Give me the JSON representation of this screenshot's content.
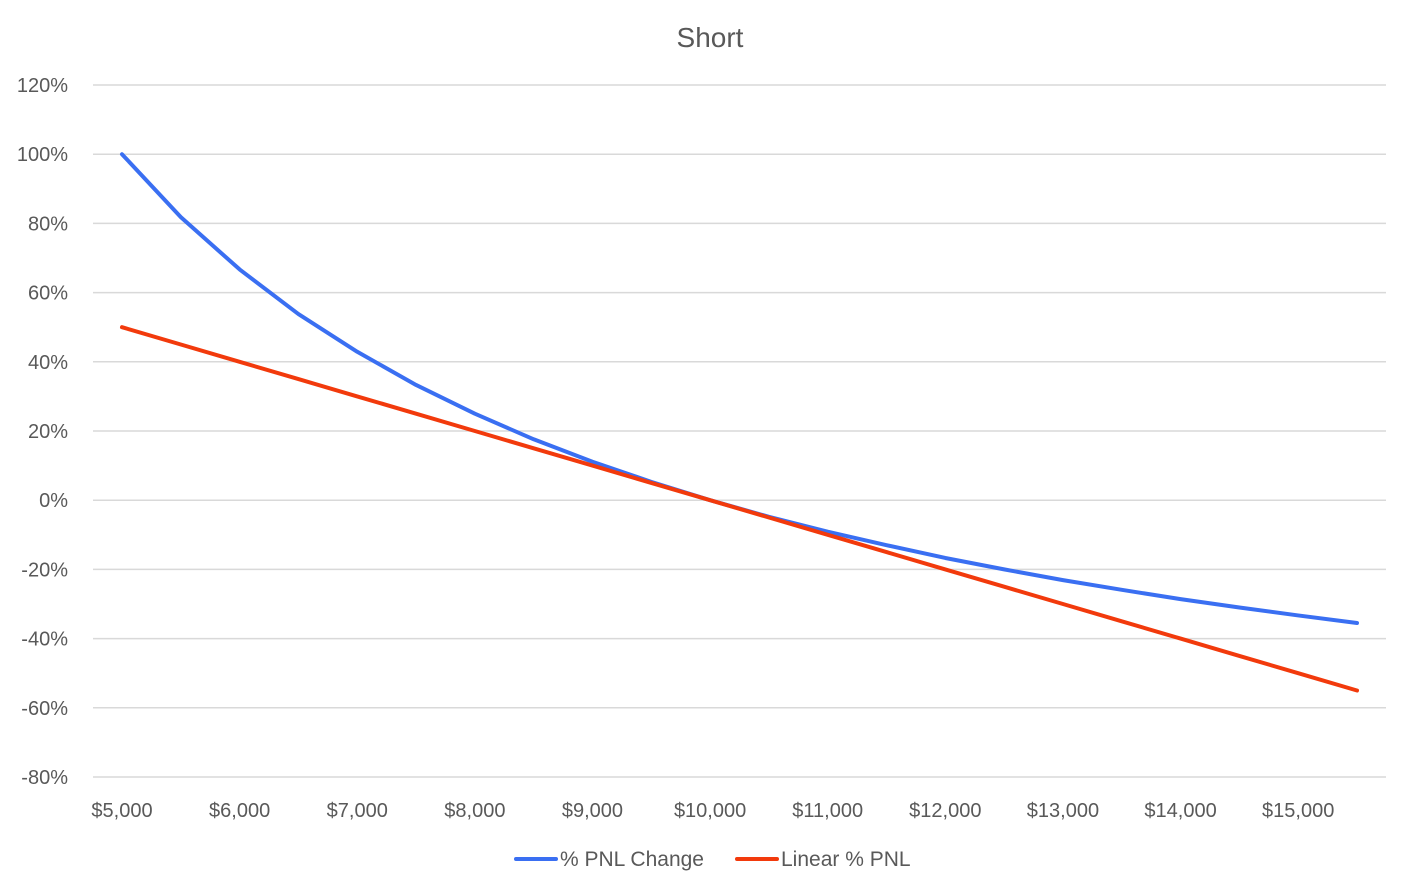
{
  "chart_data": {
    "type": "line",
    "title": "Short",
    "xlabel": "",
    "ylabel": "",
    "x": [
      5000,
      5500,
      6000,
      6500,
      7000,
      7500,
      8000,
      8500,
      9000,
      9500,
      10000,
      10500,
      11000,
      11500,
      12000,
      12500,
      13000,
      13500,
      14000,
      14500,
      15000,
      15500
    ],
    "series": [
      {
        "name": "% PNL Change",
        "color": "#3a6ff2",
        "values": [
          100,
          81.8,
          66.7,
          53.8,
          42.9,
          33.3,
          25.0,
          17.6,
          11.1,
          5.3,
          0,
          -4.8,
          -9.1,
          -13.0,
          -16.7,
          -20.0,
          -23.1,
          -25.9,
          -28.6,
          -31.0,
          -33.3,
          -35.5
        ]
      },
      {
        "name": "Linear % PNL",
        "color": "#f23a0c",
        "values": [
          50,
          45,
          40,
          35,
          30,
          25,
          20,
          15,
          10,
          5,
          0,
          -5,
          -10,
          -15,
          -20,
          -25,
          -30,
          -35,
          -40,
          -45,
          -50,
          -55
        ]
      }
    ],
    "y_ticks": [
      "120%",
      "100%",
      "80%",
      "60%",
      "40%",
      "20%",
      "0%",
      "-20%",
      "-40%",
      "-60%",
      "-80%"
    ],
    "x_ticks": [
      "$5,000",
      "$6,000",
      "$7,000",
      "$8,000",
      "$9,000",
      "$10,000",
      "$11,000",
      "$12,000",
      "$13,000",
      "$14,000",
      "$15,000"
    ],
    "ylim": [
      -80,
      120
    ],
    "grid": true,
    "legend_position": "bottom"
  }
}
